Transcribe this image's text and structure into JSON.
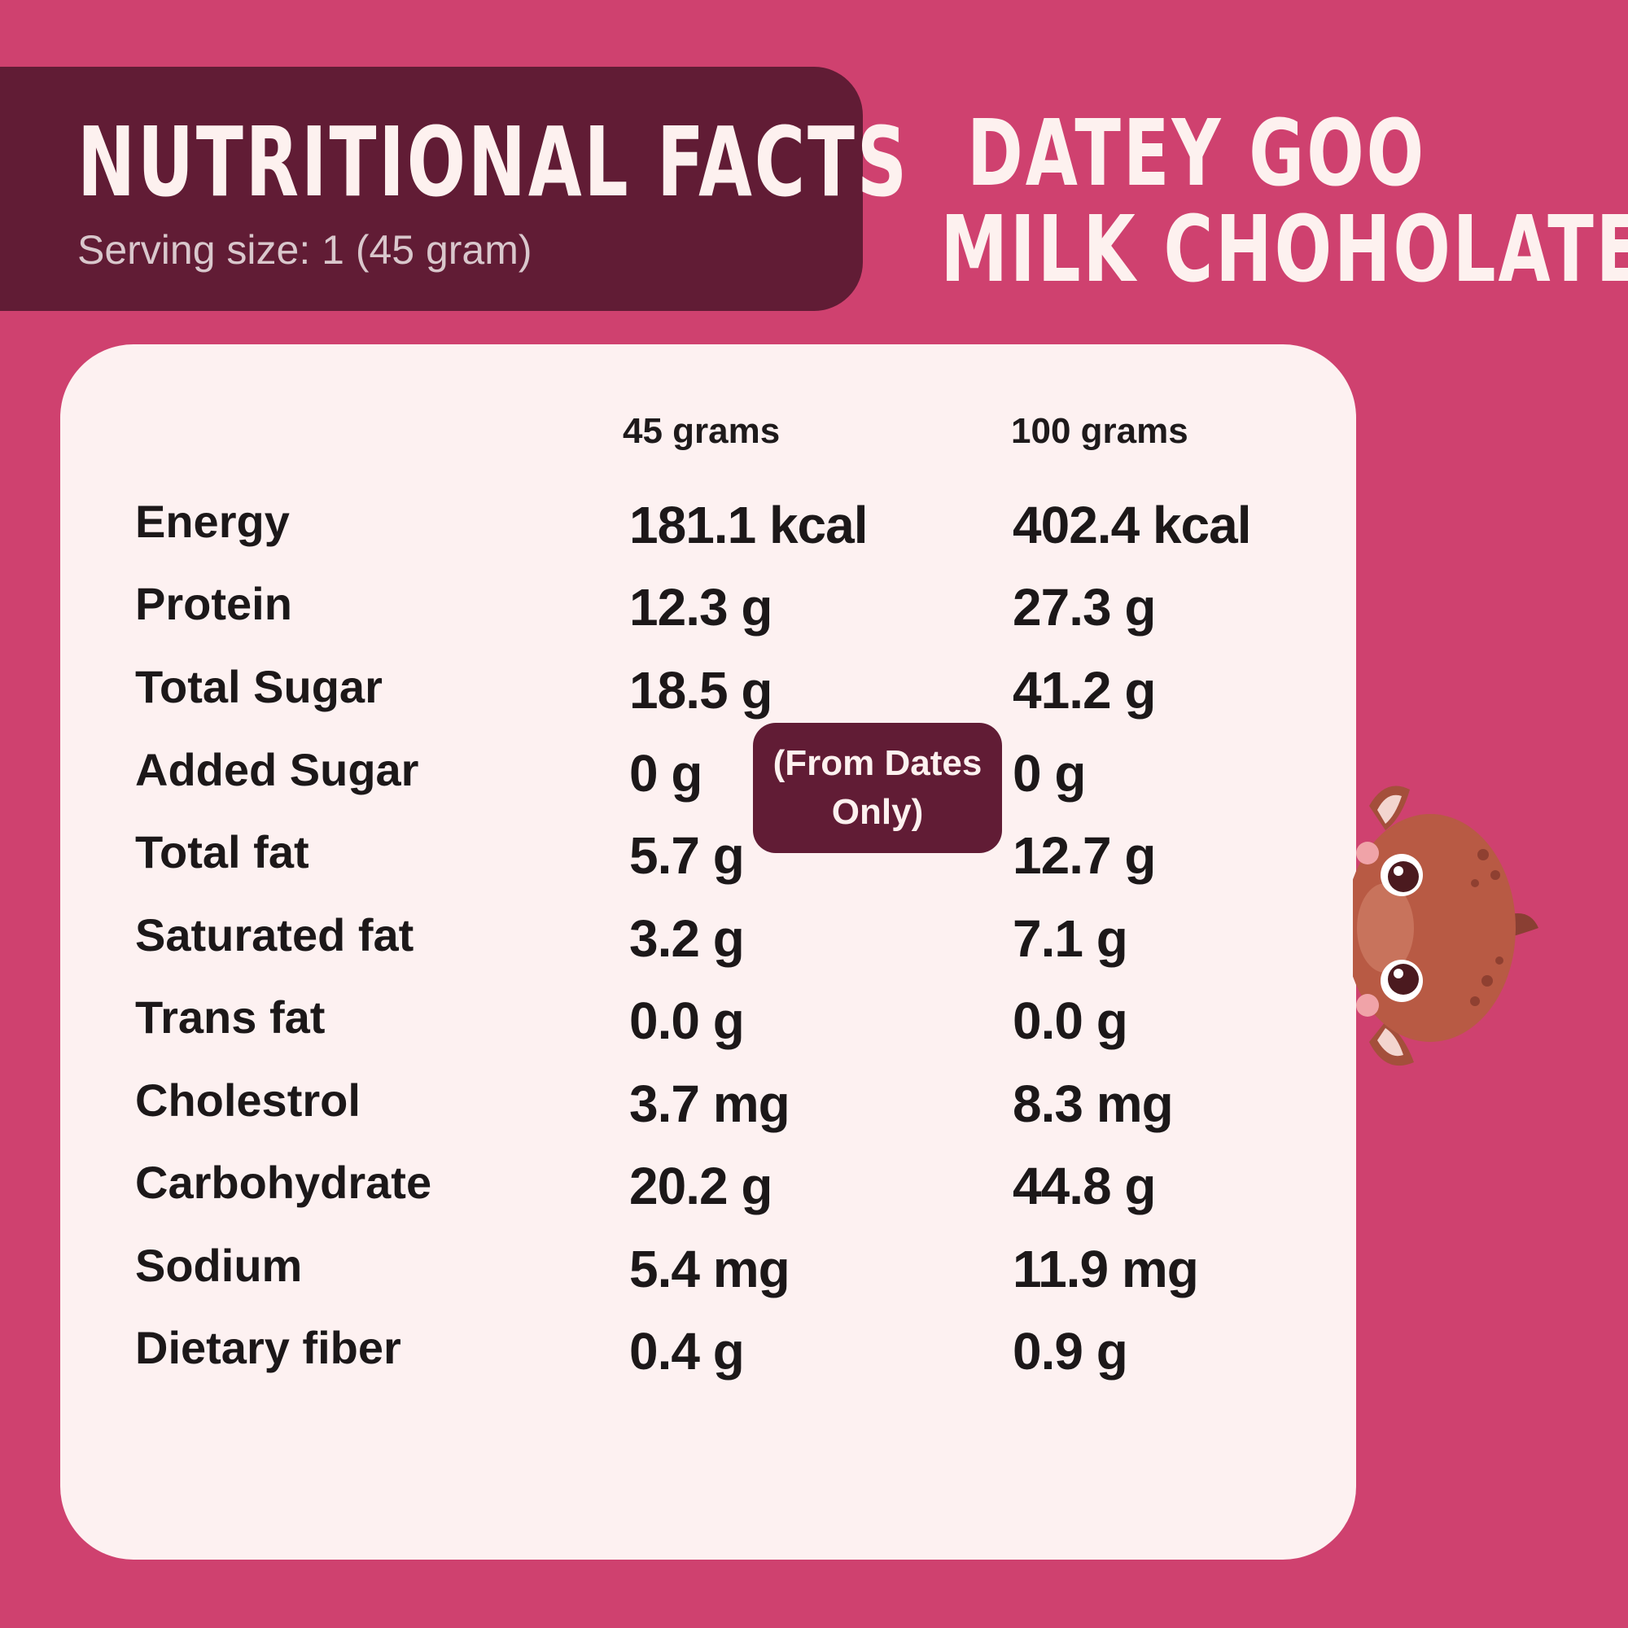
{
  "header": {
    "title": "NUTRITIONAL FACTS",
    "serving": "Serving size: 1 (45 gram)"
  },
  "product": {
    "line1": "DATEY GOO",
    "line2": "MILK CHOHOLATE"
  },
  "table": {
    "col1": "45 grams",
    "col2": "100 grams",
    "rows": [
      {
        "label": "Energy",
        "v1": "181.1 kcal",
        "v2": "402.4 kcal"
      },
      {
        "label": "Protein",
        "v1": "12.3 g",
        "v2": "27.3 g"
      },
      {
        "label": "Total Sugar",
        "v1": "18.5 g",
        "v2": "41.2 g"
      },
      {
        "label": "Added Sugar",
        "v1": "0 g",
        "v2": "0 g"
      },
      {
        "label": "Total fat",
        "v1": "5.7 g",
        "v2": "12.7 g"
      },
      {
        "label": "Saturated fat",
        "v1": "3.2 g",
        "v2": "7.1 g"
      },
      {
        "label": "Trans fat",
        "v1": "0.0 g",
        "v2": "0.0 g"
      },
      {
        "label": "Cholestrol",
        "v1": "3.7 mg",
        "v2": "8.3 mg"
      },
      {
        "label": "Carbohydrate",
        "v1": "20.2 g",
        "v2": "44.8 g"
      },
      {
        "label": "Sodium",
        "v1": "5.4 mg",
        "v2": "11.9 mg"
      },
      {
        "label": "Dietary fiber",
        "v1": "0.4 g",
        "v2": "0.9 g"
      }
    ]
  },
  "badge": {
    "line1": "(From Dates",
    "line2": "Only)"
  },
  "colors": {
    "background": "#cf416f",
    "header_box": "#611c35",
    "card": "#fdf1f1",
    "text_dark": "#1c1819",
    "text_light": "#fdf1ef"
  },
  "icons": {
    "mascot": "cartoon-calf-mascot"
  }
}
